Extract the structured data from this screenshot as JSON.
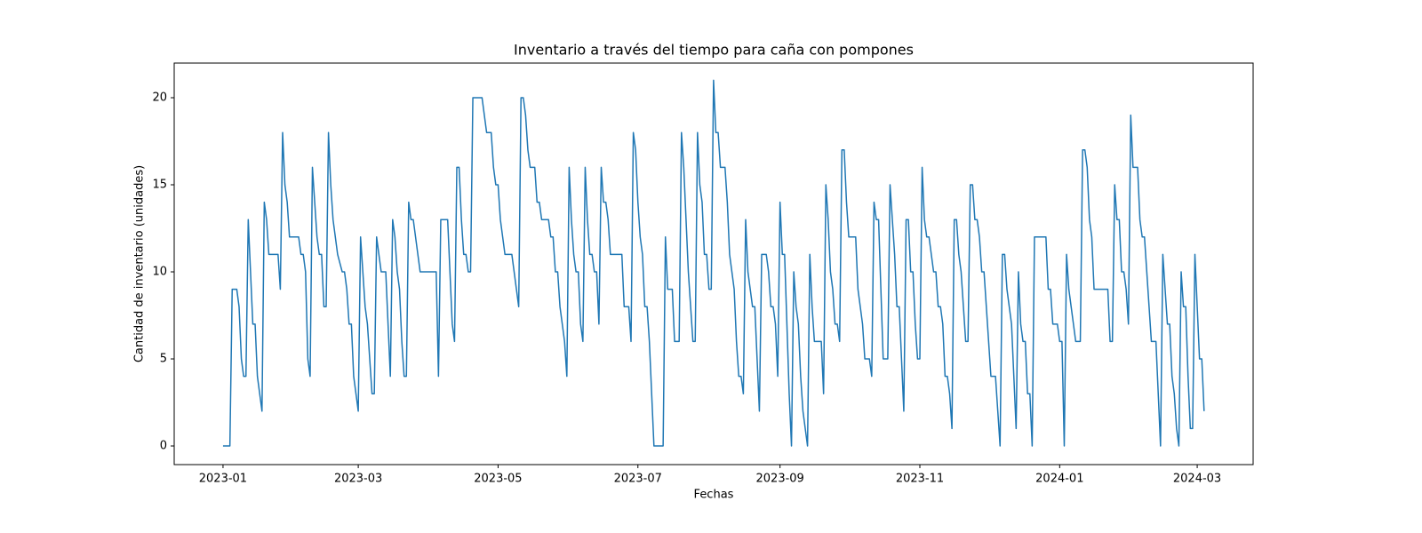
{
  "chart_data": {
    "type": "line",
    "title": "Inventario a través del tiempo para caña con pompones",
    "x_label": "Fechas",
    "y_label": "Cantidad de inventario (unidades)",
    "x": [
      0,
      3,
      4,
      6,
      7,
      8,
      9,
      10,
      11,
      12,
      13,
      14,
      15,
      16,
      17,
      18,
      19,
      20,
      24,
      25,
      26,
      27,
      28,
      29,
      33,
      34,
      35,
      36,
      37,
      38,
      39,
      40,
      41,
      42,
      43,
      44,
      45,
      46,
      47,
      48,
      50,
      52,
      53,
      54,
      55,
      56,
      57,
      58,
      59,
      60,
      62,
      63,
      64,
      65,
      66,
      67,
      68,
      69,
      71,
      73,
      74,
      75,
      76,
      77,
      78,
      79,
      80,
      81,
      82,
      83,
      84,
      86,
      93,
      94,
      95,
      98,
      99,
      100,
      101,
      102,
      103,
      104,
      105,
      106,
      107,
      108,
      109,
      113,
      114,
      115,
      117,
      118,
      119,
      120,
      121,
      122,
      123,
      126,
      127,
      129,
      130,
      131,
      132,
      133,
      134,
      136,
      137,
      138,
      139,
      142,
      143,
      144,
      145,
      146,
      147,
      148,
      149,
      150,
      151,
      152,
      153,
      154,
      155,
      156,
      157,
      158,
      159,
      160,
      161,
      162,
      163,
      164,
      165,
      166,
      167,
      168,
      169,
      174,
      175,
      177,
      178,
      179,
      180,
      181,
      182,
      183,
      184,
      185,
      186,
      187,
      188,
      192,
      193,
      194,
      196,
      197,
      199,
      200,
      201,
      202,
      203,
      204,
      205,
      206,
      207,
      208,
      209,
      210,
      211,
      212,
      213,
      214,
      215,
      216,
      217,
      219,
      220,
      221,
      222,
      223,
      224,
      225,
      226,
      227,
      228,
      229,
      230,
      231,
      232,
      233,
      234,
      235,
      237,
      238,
      239,
      240,
      241,
      242,
      243,
      244,
      245,
      246,
      247,
      248,
      249,
      250,
      251,
      252,
      253,
      254,
      255,
      256,
      257,
      258,
      261,
      262,
      263,
      264,
      265,
      266,
      267,
      268,
      269,
      270,
      271,
      272,
      273,
      276,
      277,
      278,
      279,
      280,
      282,
      283,
      284,
      285,
      286,
      287,
      288,
      290,
      291,
      292,
      293,
      294,
      295,
      296,
      297,
      298,
      299,
      300,
      301,
      302,
      303,
      304,
      305,
      306,
      307,
      308,
      309,
      310,
      311,
      312,
      313,
      314,
      315,
      316,
      317,
      318,
      319,
      320,
      321,
      322,
      323,
      324,
      325,
      326,
      327,
      328,
      329,
      330,
      331,
      332,
      333,
      334,
      335,
      337,
      338,
      339,
      340,
      341,
      342,
      343,
      344,
      345,
      346,
      347,
      348,
      349,
      350,
      351,
      352,
      353,
      354,
      359,
      360,
      361,
      362,
      364,
      365,
      366,
      367,
      368,
      369,
      370,
      371,
      372,
      374,
      375,
      376,
      377,
      378,
      379,
      380,
      386,
      387,
      388,
      389,
      390,
      391,
      392,
      393,
      394,
      395,
      396,
      397,
      399,
      400,
      401,
      402,
      403,
      404,
      405,
      407,
      408,
      409,
      410,
      411,
      412,
      413,
      414,
      415,
      416,
      417,
      418,
      419,
      420,
      421,
      422,
      423,
      424,
      425,
      426,
      427,
      428
    ],
    "series": [
      {
        "color": "#1f77b4",
        "values": [
          0,
          0,
          9,
          9,
          8,
          5,
          4,
          4,
          13,
          10,
          7,
          7,
          4,
          3,
          2,
          14,
          13,
          11,
          11,
          9,
          18,
          15,
          14,
          12,
          12,
          11,
          11,
          10,
          5,
          4,
          16,
          14,
          12,
          11,
          11,
          8,
          8,
          18,
          15,
          13,
          11,
          10,
          10,
          9,
          7,
          7,
          4,
          3,
          2,
          12,
          8,
          7,
          5,
          3,
          3,
          12,
          11,
          10,
          10,
          4,
          13,
          12,
          10,
          9,
          6,
          4,
          4,
          14,
          13,
          13,
          12,
          10,
          10,
          4,
          13,
          13,
          10,
          7,
          6,
          16,
          16,
          13,
          11,
          11,
          10,
          10,
          20,
          20,
          19,
          18,
          18,
          16,
          15,
          15,
          13,
          12,
          11,
          11,
          10,
          8,
          20,
          20,
          19,
          17,
          16,
          16,
          14,
          14,
          13,
          13,
          12,
          12,
          10,
          10,
          8,
          7,
          6,
          4,
          16,
          13,
          11,
          10,
          10,
          7,
          6,
          16,
          13,
          11,
          11,
          10,
          10,
          7,
          16,
          14,
          14,
          13,
          11,
          11,
          8,
          8,
          6,
          18,
          17,
          14,
          12,
          11,
          8,
          8,
          6,
          3,
          0,
          0,
          12,
          9,
          9,
          6,
          6,
          18,
          16,
          13,
          10,
          8,
          6,
          6,
          18,
          15,
          14,
          11,
          11,
          9,
          9,
          21,
          18,
          18,
          16,
          16,
          14,
          11,
          10,
          9,
          6,
          4,
          4,
          3,
          13,
          10,
          9,
          8,
          8,
          5,
          2,
          11,
          11,
          10,
          8,
          8,
          7,
          4,
          14,
          11,
          11,
          7,
          3,
          0,
          10,
          8,
          7,
          4,
          2,
          1,
          0,
          11,
          8,
          6,
          6,
          3,
          15,
          13,
          10,
          9,
          7,
          7,
          6,
          17,
          17,
          14,
          12,
          12,
          9,
          8,
          7,
          5,
          5,
          4,
          14,
          13,
          13,
          9,
          5,
          5,
          15,
          13,
          11,
          8,
          8,
          5,
          2,
          13,
          13,
          10,
          10,
          7,
          5,
          5,
          16,
          13,
          12,
          12,
          11,
          10,
          10,
          8,
          8,
          7,
          4,
          4,
          3,
          1,
          13,
          13,
          11,
          10,
          8,
          6,
          6,
          15,
          15,
          13,
          13,
          12,
          10,
          10,
          8,
          6,
          4,
          4,
          2,
          0,
          11,
          11,
          9,
          8,
          7,
          4,
          1,
          10,
          7,
          6,
          6,
          3,
          3,
          0,
          12,
          12,
          9,
          9,
          7,
          7,
          6,
          6,
          0,
          11,
          9,
          8,
          7,
          6,
          6,
          17,
          17,
          16,
          13,
          12,
          9,
          9,
          6,
          6,
          15,
          13,
          13,
          10,
          10,
          9,
          7,
          19,
          16,
          16,
          13,
          12,
          12,
          10,
          8,
          6,
          6,
          3,
          0,
          11,
          9,
          7,
          7,
          4,
          3,
          1,
          0,
          10,
          8,
          8,
          4,
          1,
          1,
          11,
          8,
          5,
          5,
          2
        ]
      }
    ],
    "xlim": [
      -21.3,
      449.4
    ],
    "xticks": [
      {
        "value": 0,
        "label": "2023-01"
      },
      {
        "value": 59,
        "label": "2023-03"
      },
      {
        "value": 120,
        "label": "2023-05"
      },
      {
        "value": 181,
        "label": "2023-07"
      },
      {
        "value": 243,
        "label": "2023-09"
      },
      {
        "value": 304,
        "label": "2023-11"
      },
      {
        "value": 365,
        "label": "2024-01"
      },
      {
        "value": 425,
        "label": "2024-03"
      }
    ],
    "ylim": [
      -1.07,
      21.99
    ],
    "yticks": [
      0,
      5,
      10,
      15,
      20
    ]
  }
}
